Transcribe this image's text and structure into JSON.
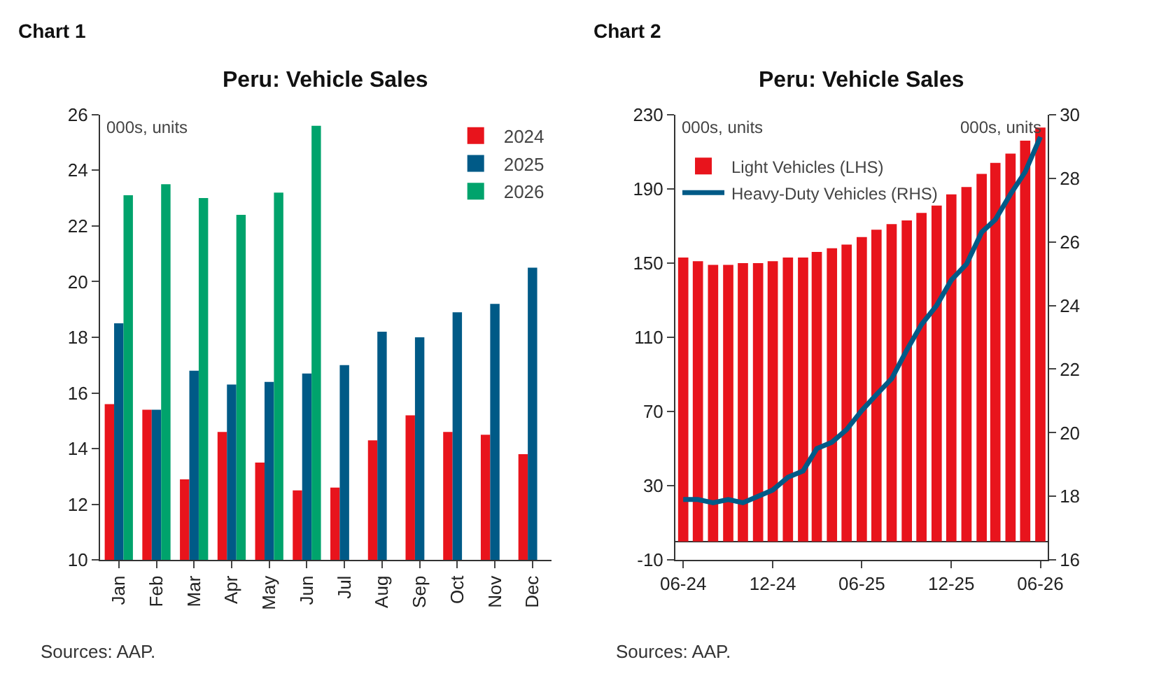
{
  "chart_data": [
    {
      "type": "bar",
      "title": "Peru: Vehicle Sales",
      "categories": [
        "Jan",
        "Feb",
        "Mar",
        "Apr",
        "May",
        "Jun",
        "Jul",
        "Aug",
        "Sep",
        "Oct",
        "Nov",
        "Dec"
      ],
      "series": [
        {
          "name": "2024",
          "color": "#e8141c",
          "values": [
            15.6,
            15.4,
            12.9,
            14.6,
            13.5,
            12.5,
            12.6,
            14.3,
            15.2,
            14.6,
            14.5,
            13.8
          ]
        },
        {
          "name": "2025",
          "color": "#005a87",
          "values": [
            18.5,
            15.4,
            16.8,
            16.3,
            16.4,
            16.7,
            17.0,
            18.2,
            18.0,
            18.9,
            19.2,
            20.5
          ]
        },
        {
          "name": "2026",
          "color": "#00a36c",
          "values": [
            23.1,
            23.5,
            23.0,
            22.4,
            23.2,
            25.6,
            null,
            null,
            null,
            null,
            null,
            null
          ]
        }
      ],
      "ylim": [
        10,
        26
      ],
      "yticks": [
        10,
        12,
        14,
        16,
        18,
        20,
        22,
        24,
        26
      ],
      "legend": "top right",
      "annotations": [
        "Chart 1",
        "000s, units",
        "Sources: AAP."
      ]
    },
    {
      "type": "bar",
      "title": "Peru: Vehicle Sales",
      "x": [
        "2024-06",
        "2024-07",
        "2024-08",
        "2024-09",
        "2024-10",
        "2024-11",
        "2024-12",
        "2025-01",
        "2025-02",
        "2025-03",
        "2025-04",
        "2025-05",
        "2025-06",
        "2025-07",
        "2025-08",
        "2025-09",
        "2025-10",
        "2025-11",
        "2025-12",
        "2026-01",
        "2026-02",
        "2026-03",
        "2026-04",
        "2026-05",
        "2026-06"
      ],
      "series": [
        {
          "name": "Light Vehicles (LHS)",
          "color": "#e8141c",
          "values": [
            153,
            151,
            149,
            149,
            150,
            150,
            151,
            153,
            153,
            156,
            158,
            160,
            164,
            168,
            171,
            173,
            177,
            181,
            187,
            191,
            198,
            204,
            209,
            216,
            223
          ]
        },
        {
          "name": "Heavy-Duty Vehicles (RHS)",
          "type": "line",
          "axis": "y2",
          "color": "#005a87",
          "values": [
            17.9,
            17.9,
            17.8,
            17.9,
            17.8,
            18.0,
            18.2,
            18.6,
            18.8,
            19.5,
            19.7,
            20.1,
            20.7,
            21.2,
            21.7,
            22.6,
            23.4,
            24.0,
            24.8,
            25.3,
            26.3,
            26.7,
            27.5,
            28.2,
            29.3
          ]
        }
      ],
      "xlim": [
        "2024-05-16",
        "2026-06-16"
      ],
      "xticks": [
        {
          "value": "2024-06",
          "label": "06-24"
        },
        {
          "value": "2024-12",
          "label": "12-24"
        },
        {
          "value": "2025-06",
          "label": "06-25"
        },
        {
          "value": "2025-12",
          "label": "12-25"
        },
        {
          "value": "2026-06",
          "label": "06-26"
        }
      ],
      "ylim": [
        -10,
        230
      ],
      "yticks": [
        -10,
        30,
        70,
        110,
        150,
        190,
        230
      ],
      "y2lim": [
        16,
        30
      ],
      "y2ticks": [
        16,
        18,
        20,
        22,
        24,
        26,
        28,
        30
      ],
      "legend": "top left",
      "marker": "none",
      "line_style": "solid",
      "annotations": [
        "Chart 2",
        "000s, units",
        "000s, units",
        "Sources: AAP."
      ]
    }
  ]
}
